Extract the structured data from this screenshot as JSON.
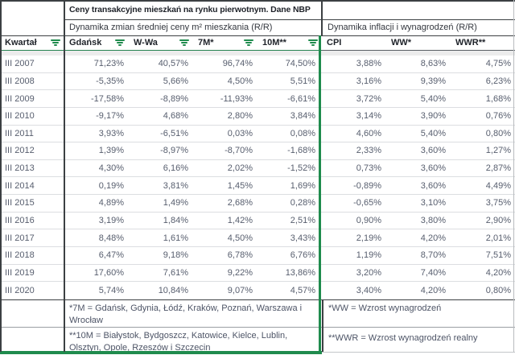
{
  "title": "Ceny transakcyjne mieszkań na rynku pierwotnym. Dane NBP",
  "left_subtitle": "Dynamika zmian średniej ceny m² mieszkania (R/R)",
  "right_subtitle": "Dynamika inflacji i wynagrodzeń (R/R)",
  "colors": {
    "accent_green": "#1f8b4d"
  },
  "columns": [
    {
      "label": "Kwartał",
      "filter": true
    },
    {
      "label": "Gdańsk",
      "filter": true
    },
    {
      "label": "W-Wa",
      "filter": true
    },
    {
      "label": "7M*",
      "filter": true
    },
    {
      "label": "10M**",
      "filter": true
    },
    {
      "label": "CPI",
      "filter": false
    },
    {
      "label": "WW*",
      "filter": false
    },
    {
      "label": "WWR**",
      "filter": false
    }
  ],
  "rows": [
    {
      "quarter": "III 2007",
      "gdansk": "71,23%",
      "wwa": "40,57%",
      "m7": "96,74%",
      "m10": "74,50%",
      "cpi": "3,88%",
      "ww": "8,63%",
      "wwr": "4,75%"
    },
    {
      "quarter": "III 2008",
      "gdansk": "-5,35%",
      "wwa": "5,66%",
      "m7": "4,50%",
      "m10": "5,51%",
      "cpi": "3,16%",
      "ww": "9,39%",
      "wwr": "6,23%"
    },
    {
      "quarter": "III 2009",
      "gdansk": "-17,58%",
      "wwa": "-8,89%",
      "m7": "-11,93%",
      "m10": "-6,61%",
      "cpi": "3,72%",
      "ww": "5,40%",
      "wwr": "1,68%"
    },
    {
      "quarter": "III 2010",
      "gdansk": "-9,17%",
      "wwa": "4,68%",
      "m7": "2,80%",
      "m10": "3,84%",
      "cpi": "3,14%",
      "ww": "3,90%",
      "wwr": "0,76%"
    },
    {
      "quarter": "III 2011",
      "gdansk": "3,93%",
      "wwa": "-6,51%",
      "m7": "0,03%",
      "m10": "0,08%",
      "cpi": "4,60%",
      "ww": "5,40%",
      "wwr": "0,80%"
    },
    {
      "quarter": "III 2012",
      "gdansk": "1,39%",
      "wwa": "-8,97%",
      "m7": "-8,70%",
      "m10": "-1,68%",
      "cpi": "2,33%",
      "ww": "3,60%",
      "wwr": "1,27%"
    },
    {
      "quarter": "III 2013",
      "gdansk": "4,30%",
      "wwa": "6,16%",
      "m7": "2,02%",
      "m10": "-1,52%",
      "cpi": "0,73%",
      "ww": "3,60%",
      "wwr": "2,87%"
    },
    {
      "quarter": "III 2014",
      "gdansk": "0,19%",
      "wwa": "3,81%",
      "m7": "1,45%",
      "m10": "1,69%",
      "cpi": "-0,89%",
      "ww": "3,60%",
      "wwr": "4,49%"
    },
    {
      "quarter": "III 2015",
      "gdansk": "4,89%",
      "wwa": "1,49%",
      "m7": "2,68%",
      "m10": "0,28%",
      "cpi": "-0,65%",
      "ww": "3,10%",
      "wwr": "3,75%"
    },
    {
      "quarter": "III 2016",
      "gdansk": "3,19%",
      "wwa": "1,84%",
      "m7": "1,42%",
      "m10": "2,51%",
      "cpi": "0,90%",
      "ww": "3,80%",
      "wwr": "2,90%"
    },
    {
      "quarter": "III 2017",
      "gdansk": "8,48%",
      "wwa": "1,61%",
      "m7": "4,50%",
      "m10": "3,43%",
      "cpi": "2,19%",
      "ww": "4,20%",
      "wwr": "2,01%"
    },
    {
      "quarter": "III 2018",
      "gdansk": "6,47%",
      "wwa": "9,18%",
      "m7": "6,78%",
      "m10": "6,76%",
      "cpi": "1,19%",
      "ww": "8,70%",
      "wwr": "7,51%"
    },
    {
      "quarter": "III 2019",
      "gdansk": "17,60%",
      "wwa": "7,61%",
      "m7": "9,22%",
      "m10": "13,86%",
      "cpi": "3,20%",
      "ww": "7,40%",
      "wwr": "4,20%"
    },
    {
      "quarter": "III 2020",
      "gdansk": "5,74%",
      "wwa": "10,84%",
      "m7": "9,07%",
      "m10": "4,57%",
      "cpi": "3,40%",
      "ww": "4,20%",
      "wwr": "0,80%"
    }
  ],
  "footnotes": {
    "f7m": "*7M = Gdańsk, Gdynia, Łódź, Kraków, Poznań, Warszawa i Wrocław",
    "f10m": "**10M = Białystok, Bydgoszcz, Katowice, Kielce, Lublin, Olsztyn, Opole, Rzeszów i Szczecin",
    "fww": "*WW = Wzrost wynagrodzeń",
    "fwwr": "**WWR = Wzrost wynagrodzeń realny"
  }
}
